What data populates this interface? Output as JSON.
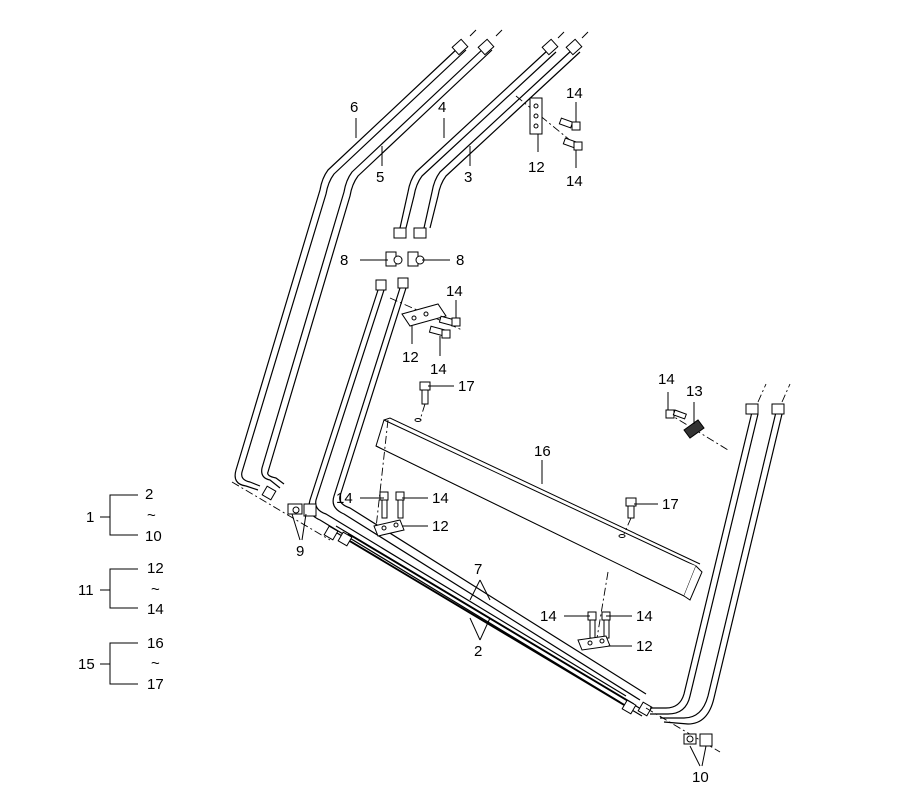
{
  "callouts": {
    "c6": "6",
    "c4": "4",
    "c5": "5",
    "c3": "3",
    "c14a": "14",
    "c12a": "12",
    "c14b": "14",
    "c8a": "8",
    "c8b": "8",
    "c14c": "14",
    "c12b": "12",
    "c14d": "14",
    "c17a": "17",
    "c14e": "14",
    "c13": "13",
    "c16": "16",
    "c14f": "14",
    "c14g": "14",
    "c12c": "12",
    "c9": "9",
    "c17b": "17",
    "c7": "7",
    "c2": "2",
    "c14h": "14",
    "c14i": "14",
    "c12d": "12",
    "c10": "10"
  },
  "legend": [
    {
      "parent": "1",
      "from": "2",
      "tilde": "~",
      "to": "10"
    },
    {
      "parent": "11",
      "from": "12",
      "tilde": "~",
      "to": "14"
    },
    {
      "parent": "15",
      "from": "16",
      "tilde": "~",
      "to": "17"
    }
  ]
}
